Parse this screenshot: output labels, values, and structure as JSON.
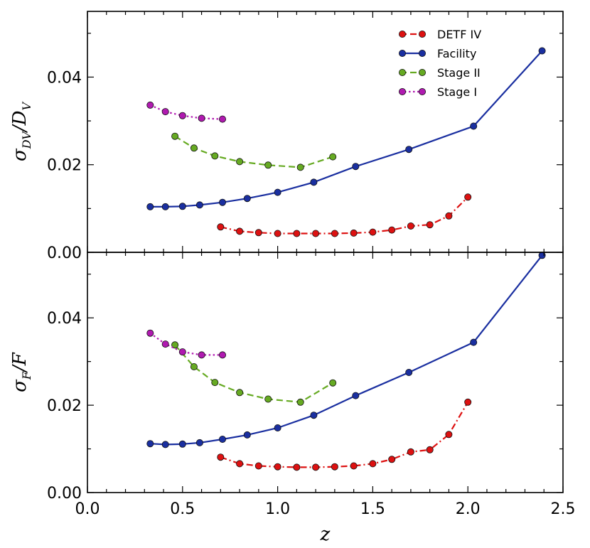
{
  "chart_data": [
    {
      "type": "line",
      "ylabel": "σ_{D_V}/D_V",
      "ylabel_main": "σ",
      "ylabel_sub": "DV",
      "ylabel_rest": "/D",
      "ylabel_rest_sub": "V",
      "xlim": [
        0.0,
        2.5
      ],
      "ylim": [
        0.0,
        0.055
      ],
      "yticks": [
        0.0,
        0.02,
        0.04
      ],
      "ytick_labels": [
        "0.00",
        "0.02",
        "0.04"
      ],
      "legend_position": "top-right",
      "series": [
        {
          "name": "DETF IV",
          "color": "#dd1111",
          "linestyle": "dashdot",
          "x": [
            0.7,
            0.8,
            0.9,
            1.0,
            1.1,
            1.2,
            1.3,
            1.4,
            1.5,
            1.6,
            1.7,
            1.8,
            1.9,
            2.0
          ],
          "y": [
            0.0058,
            0.0048,
            0.0045,
            0.0043,
            0.0043,
            0.0043,
            0.0043,
            0.0044,
            0.0046,
            0.0051,
            0.006,
            0.0063,
            0.0083,
            0.0126
          ]
        },
        {
          "name": "Facility",
          "color": "#1a2fa0",
          "linestyle": "solid",
          "x": [
            0.33,
            0.41,
            0.5,
            0.59,
            0.71,
            0.84,
            1.0,
            1.19,
            1.41,
            1.69,
            2.03,
            2.39
          ],
          "y": [
            0.0104,
            0.0104,
            0.0105,
            0.0108,
            0.0114,
            0.0123,
            0.0137,
            0.016,
            0.0196,
            0.0235,
            0.0288,
            0.046
          ]
        },
        {
          "name": "Stage II",
          "color": "#66aa22",
          "linestyle": "dashed",
          "x": [
            0.46,
            0.56,
            0.67,
            0.8,
            0.95,
            1.12,
            1.29
          ],
          "y": [
            0.0265,
            0.0238,
            0.022,
            0.0207,
            0.0199,
            0.0194,
            0.0218
          ]
        },
        {
          "name": "Stage I",
          "color": "#b01ab0",
          "linestyle": "dotted",
          "x": [
            0.33,
            0.41,
            0.5,
            0.6,
            0.71
          ],
          "y": [
            0.0336,
            0.0321,
            0.0312,
            0.0306,
            0.0304
          ]
        }
      ]
    },
    {
      "type": "line",
      "ylabel": "σ_F/F",
      "ylabel_main": "σ",
      "ylabel_sub": "F",
      "ylabel_rest": "/F",
      "ylabel_rest_sub": "",
      "xlabel": "z",
      "xlim": [
        0.0,
        2.5
      ],
      "ylim": [
        0.0,
        0.055
      ],
      "xticks": [
        0.0,
        0.5,
        1.0,
        1.5,
        2.0,
        2.5
      ],
      "xtick_labels": [
        "0.0",
        "0.5",
        "1.0",
        "1.5",
        "2.0",
        "2.5"
      ],
      "yticks": [
        0.0,
        0.02,
        0.04
      ],
      "ytick_labels": [
        "0.00",
        "0.02",
        "0.04"
      ],
      "series": [
        {
          "name": "DETF IV",
          "color": "#dd1111",
          "linestyle": "dashdot",
          "x": [
            0.7,
            0.8,
            0.9,
            1.0,
            1.1,
            1.2,
            1.3,
            1.4,
            1.5,
            1.6,
            1.7,
            1.8,
            1.9,
            2.0
          ],
          "y": [
            0.0081,
            0.0066,
            0.0061,
            0.0059,
            0.0058,
            0.0058,
            0.0059,
            0.0061,
            0.0066,
            0.0076,
            0.0093,
            0.0098,
            0.0133,
            0.0207
          ]
        },
        {
          "name": "Facility",
          "color": "#1a2fa0",
          "linestyle": "solid",
          "x": [
            0.33,
            0.41,
            0.5,
            0.59,
            0.71,
            0.84,
            1.0,
            1.19,
            1.41,
            1.69,
            2.03,
            2.39
          ],
          "y": [
            0.0112,
            0.011,
            0.0111,
            0.0114,
            0.0122,
            0.0132,
            0.0148,
            0.0177,
            0.0222,
            0.0275,
            0.0344,
            0.0543
          ]
        },
        {
          "name": "Stage II",
          "color": "#66aa22",
          "linestyle": "dashed",
          "x": [
            0.46,
            0.56,
            0.67,
            0.8,
            0.95,
            1.12,
            1.29
          ],
          "y": [
            0.0338,
            0.0288,
            0.0252,
            0.0229,
            0.0214,
            0.0207,
            0.0251
          ]
        },
        {
          "name": "Stage I",
          "color": "#b01ab0",
          "linestyle": "dotted",
          "x": [
            0.33,
            0.41,
            0.5,
            0.6,
            0.71
          ],
          "y": [
            0.0365,
            0.034,
            0.0322,
            0.0315,
            0.0315
          ]
        }
      ]
    }
  ]
}
